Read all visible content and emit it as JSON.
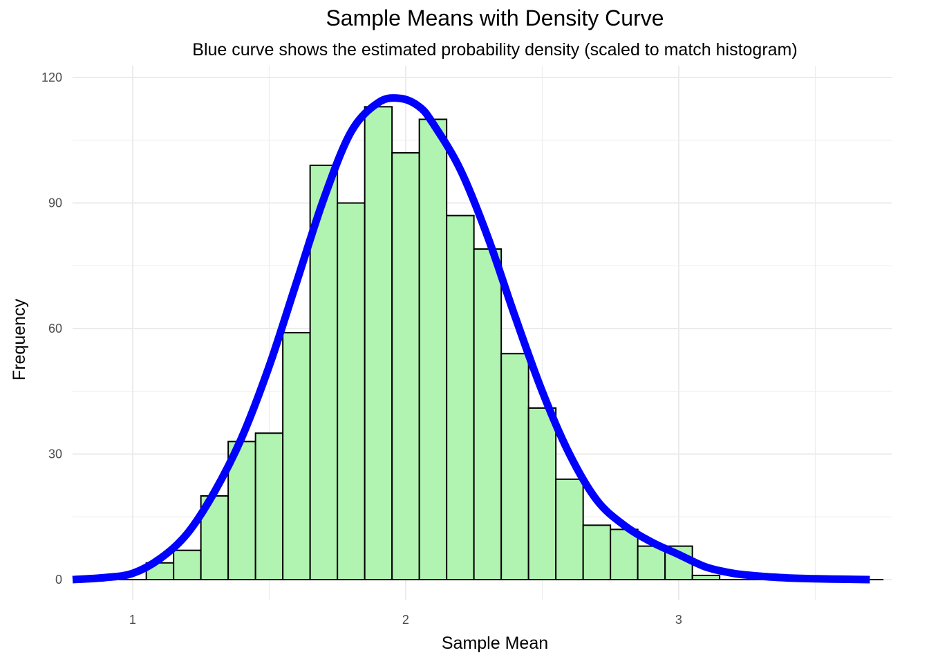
{
  "chart_data": {
    "type": "bar",
    "title": "Sample Means with Density Curve",
    "subtitle": "Blue curve shows the estimated probability density (scaled to match histogram)",
    "xlabel": "Sample Mean",
    "ylabel": "Frequency",
    "xlim": [
      0.78,
      3.78
    ],
    "ylim": [
      -4.5,
      120
    ],
    "x_ticks": [
      1,
      2,
      3
    ],
    "y_ticks": [
      0,
      30,
      60,
      90,
      120
    ],
    "grid": true,
    "bin_width": 0.1,
    "bins": [
      {
        "start": 0.95,
        "end": 1.05,
        "count": 0
      },
      {
        "start": 1.05,
        "end": 1.15,
        "count": 4
      },
      {
        "start": 1.15,
        "end": 1.25,
        "count": 7
      },
      {
        "start": 1.25,
        "end": 1.35,
        "count": 20
      },
      {
        "start": 1.35,
        "end": 1.45,
        "count": 33
      },
      {
        "start": 1.45,
        "end": 1.55,
        "count": 35
      },
      {
        "start": 1.55,
        "end": 1.65,
        "count": 59
      },
      {
        "start": 1.65,
        "end": 1.75,
        "count": 99
      },
      {
        "start": 1.75,
        "end": 1.85,
        "count": 90
      },
      {
        "start": 1.85,
        "end": 1.95,
        "count": 113
      },
      {
        "start": 1.95,
        "end": 2.05,
        "count": 102
      },
      {
        "start": 2.05,
        "end": 2.15,
        "count": 110
      },
      {
        "start": 2.15,
        "end": 2.25,
        "count": 87
      },
      {
        "start": 2.25,
        "end": 2.35,
        "count": 79
      },
      {
        "start": 2.35,
        "end": 2.45,
        "count": 54
      },
      {
        "start": 2.45,
        "end": 2.55,
        "count": 41
      },
      {
        "start": 2.55,
        "end": 2.65,
        "count": 24
      },
      {
        "start": 2.65,
        "end": 2.75,
        "count": 13
      },
      {
        "start": 2.75,
        "end": 2.85,
        "count": 12
      },
      {
        "start": 2.85,
        "end": 2.95,
        "count": 8
      },
      {
        "start": 2.95,
        "end": 3.05,
        "count": 8
      },
      {
        "start": 3.05,
        "end": 3.15,
        "count": 1
      },
      {
        "start": 3.15,
        "end": 3.25,
        "count": 0
      },
      {
        "start": 3.25,
        "end": 3.35,
        "count": 0
      },
      {
        "start": 3.35,
        "end": 3.45,
        "count": 0
      },
      {
        "start": 3.45,
        "end": 3.55,
        "count": 0
      },
      {
        "start": 3.55,
        "end": 3.65,
        "count": 0
      },
      {
        "start": 3.65,
        "end": 3.75,
        "count": 0
      }
    ],
    "density_curve": {
      "x": [
        0.78,
        0.9,
        1.0,
        1.1,
        1.2,
        1.3,
        1.4,
        1.5,
        1.6,
        1.7,
        1.8,
        1.9,
        1.98,
        2.05,
        2.1,
        2.2,
        2.3,
        2.4,
        2.5,
        2.6,
        2.7,
        2.8,
        2.9,
        3.0,
        3.1,
        3.2,
        3.3,
        3.4,
        3.5,
        3.6,
        3.7
      ],
      "y": [
        0,
        0.5,
        1.5,
        5,
        11,
        21,
        34,
        51,
        71,
        91,
        107,
        114,
        115,
        113,
        109,
        98,
        82,
        63,
        45,
        30,
        19,
        13,
        9,
        6,
        3,
        1.5,
        0.8,
        0.4,
        0.2,
        0.1,
        0
      ]
    },
    "colors": {
      "bar_fill": "#b1f3b1",
      "bar_stroke": "#000000",
      "curve": "#0000ff",
      "grid": "#ebebeb",
      "tick_text": "#4d4d4d"
    }
  }
}
